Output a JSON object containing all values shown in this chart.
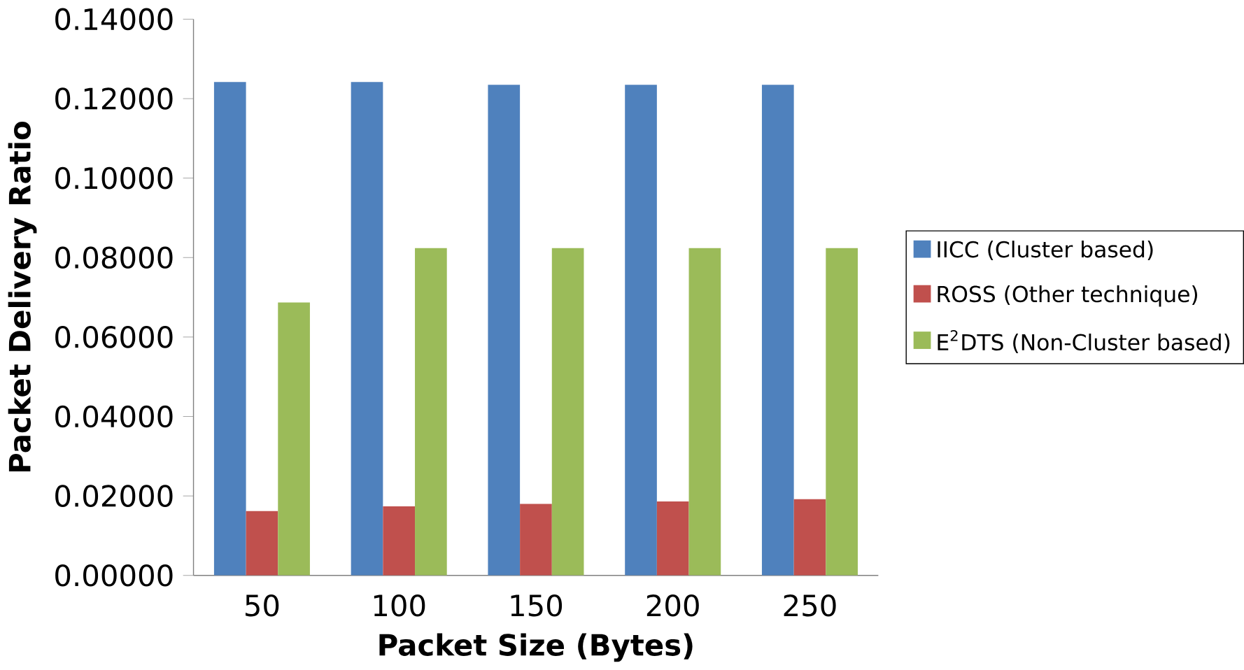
{
  "chart_data": {
    "type": "bar",
    "xlabel": "Packet Size (Bytes)",
    "ylabel": "Packet Delivery Ratio",
    "categories": [
      "50",
      "100",
      "150",
      "200",
      "250"
    ],
    "series": [
      {
        "name": "IICC (Cluster based)",
        "color": "#4f81bd",
        "values": [
          0.1242,
          0.1242,
          0.1235,
          0.1235,
          0.1235
        ]
      },
      {
        "name": "ROSS (Other technique)",
        "color": "#c0504d",
        "values": [
          0.0162,
          0.0174,
          0.018,
          0.0186,
          0.0192
        ]
      },
      {
        "name": "E$^{2}$DTS (Non-Cluster based)",
        "color": "#9bbb59",
        "values": [
          0.0687,
          0.0824,
          0.0824,
          0.0824,
          0.0824
        ]
      }
    ],
    "ylim": [
      0,
      0.14
    ],
    "yticks": [
      {
        "value": 0,
        "label": "0.00000"
      },
      {
        "value": 0.02,
        "label": "0.02000"
      },
      {
        "value": 0.04,
        "label": "0.04000"
      },
      {
        "value": 0.06,
        "label": "0.06000"
      },
      {
        "value": 0.08,
        "label": "0.08000"
      },
      {
        "value": 0.1,
        "label": "0.10000"
      },
      {
        "value": 0.12,
        "label": "0.12000"
      },
      {
        "value": 0.14,
        "label": "0.14000"
      }
    ],
    "grid": false,
    "legend": "right"
  }
}
